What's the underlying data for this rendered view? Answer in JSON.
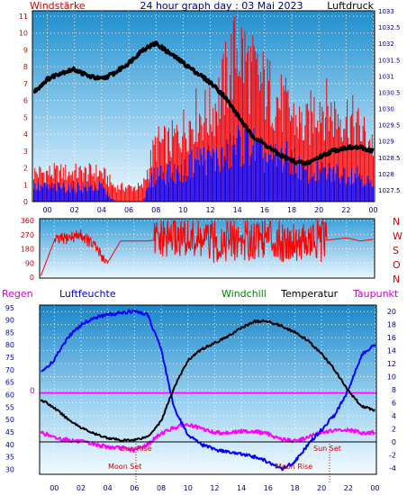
{
  "chart_data": [
    {
      "type": "line",
      "panel": "wind-pressure",
      "title": "24 hour graph day : 03 Mai 2023",
      "left_axis_label": "Windstärke",
      "right_axis_label": "Luftdruck",
      "x_ticks": [
        "00",
        "02",
        "04",
        "06",
        "08",
        "10",
        "12",
        "14",
        "16",
        "18",
        "20",
        "22",
        "00"
      ],
      "left_ticks": [
        "0",
        "1",
        "2",
        "3",
        "4",
        "5",
        "6",
        "7",
        "8",
        "9",
        "10",
        "11"
      ],
      "right_ticks": [
        "1027.5",
        "1028",
        "1028.5",
        "1029",
        "1029.5",
        "1030",
        "1030.5",
        "1031",
        "1031.5",
        "1032",
        "1032.5",
        "1033"
      ],
      "ylim_left": [
        0,
        11
      ],
      "ylim_right": [
        1027.5,
        1033
      ],
      "grid": true,
      "colors": {
        "gust": "#ff0000",
        "wind": "#0000ff",
        "pressure": "#000000",
        "axis_text": "#cc0000",
        "tick_text": "#000080"
      },
      "series": [
        {
          "role": "pressure",
          "x": [
            -1,
            0,
            1,
            2,
            3,
            4,
            5,
            6,
            7,
            8,
            9,
            10,
            11,
            12,
            13,
            14,
            15,
            16,
            17,
            18,
            19,
            20,
            21,
            22,
            23,
            24
          ],
          "values": [
            1030.5,
            1030.9,
            1031.1,
            1031.2,
            1031.0,
            1030.9,
            1031.1,
            1031.4,
            1031.8,
            1032.0,
            1031.7,
            1031.4,
            1031.1,
            1030.8,
            1030.4,
            1029.8,
            1029.2,
            1028.9,
            1028.6,
            1028.4,
            1028.3,
            1028.5,
            1028.7,
            1028.8,
            1028.8,
            1028.7
          ]
        },
        {
          "role": "gust",
          "x": [
            -1,
            0,
            1,
            2,
            3,
            4,
            5,
            6,
            7,
            8,
            9,
            10,
            11,
            12,
            13,
            14,
            15,
            16,
            17,
            18,
            19,
            20,
            21,
            22,
            23,
            24
          ],
          "values": [
            2,
            2,
            2,
            2,
            2,
            2,
            1,
            1,
            1,
            4,
            4,
            5,
            6,
            6,
            8,
            11,
            9,
            8,
            7,
            6,
            5,
            7,
            6,
            6,
            5,
            4
          ]
        },
        {
          "role": "wind",
          "x": [
            -1,
            0,
            1,
            2,
            3,
            4,
            5,
            6,
            7,
            8,
            9,
            10,
            11,
            12,
            13,
            14,
            15,
            16,
            17,
            18,
            19,
            20,
            21,
            22,
            23,
            24
          ],
          "values": [
            1,
            1,
            1,
            1,
            1,
            1,
            0,
            0,
            0,
            2,
            2,
            2,
            3,
            3,
            3,
            4,
            4,
            3,
            3,
            3,
            2,
            2,
            2,
            2,
            2,
            1
          ]
        }
      ]
    },
    {
      "type": "line",
      "panel": "wind-direction",
      "left_ticks": [
        "0",
        "90",
        "180",
        "270",
        "360"
      ],
      "direction_labels": [
        "N",
        "W",
        "S",
        "O",
        "N"
      ],
      "ylim": [
        0,
        360
      ],
      "colors": {
        "direction": "#ff0000",
        "direction_labels": "#cc0000",
        "tick_text": "#000080"
      },
      "series": [
        {
          "role": "direction",
          "x": [
            -1,
            0,
            1,
            2,
            3,
            4,
            5,
            6,
            7,
            8,
            9,
            10,
            11,
            12,
            13,
            14,
            15,
            16,
            17,
            18,
            19,
            20,
            21,
            22,
            23,
            24
          ],
          "values": [
            10,
            230,
            250,
            270,
            200,
            90,
            230,
            230,
            230,
            240,
            260,
            250,
            230,
            220,
            240,
            230,
            250,
            270,
            230,
            240,
            220,
            230,
            240,
            250,
            230,
            240
          ]
        }
      ]
    },
    {
      "type": "line",
      "panel": "temperature-humidity",
      "labels": {
        "regen": "Regen",
        "humidity": "Luftfeuchte",
        "windchill": "Windchill",
        "temperature": "Temperatur",
        "dewpoint": "Taupunkt"
      },
      "left_ticks": [
        "30",
        "35",
        "40",
        "45",
        "50",
        "55",
        "60",
        "65",
        "70",
        "75",
        "80",
        "85",
        "90",
        "95"
      ],
      "right_ticks": [
        "-4",
        "-2",
        "0",
        "2",
        "4",
        "6",
        "8",
        "10",
        "12",
        "14",
        "16",
        "18",
        "20"
      ],
      "regen_marker": "0",
      "ylim_left": [
        28,
        96
      ],
      "ylim_right": [
        -5,
        21
      ],
      "annotations": {
        "sun_rise": "Sun Rise",
        "sun_set": "Sun Set",
        "moon_set": "Moon Set",
        "moon_rise": "Moon Rise"
      },
      "colors": {
        "humidity": "#0000ff",
        "temperature": "#000000",
        "dewpoint": "#ff00ff",
        "windchill": "#008000",
        "regen_line": "#ff00ff",
        "sun": "#cc0000"
      },
      "series": [
        {
          "role": "humidity",
          "x": [
            -1,
            0,
            1,
            2,
            3,
            4,
            5,
            6,
            7,
            8,
            9,
            10,
            11,
            12,
            13,
            14,
            15,
            16,
            17,
            18,
            19,
            20,
            21,
            22,
            23,
            24
          ],
          "values": [
            69,
            74,
            83,
            88,
            91,
            92,
            93,
            93.5,
            92,
            78,
            54,
            44,
            40,
            38,
            37,
            36,
            35,
            33,
            30,
            33,
            40,
            46,
            52,
            62,
            76,
            80
          ]
        },
        {
          "role": "temperature",
          "x": [
            -1,
            0,
            1,
            2,
            3,
            4,
            5,
            6,
            7,
            8,
            9,
            10,
            11,
            12,
            13,
            14,
            15,
            16,
            17,
            18,
            19,
            20,
            21,
            22,
            23,
            24
          ],
          "values": [
            6.5,
            5.2,
            3.5,
            2.2,
            1.2,
            0.6,
            0.2,
            0.3,
            0.8,
            3.2,
            8.5,
            12.5,
            14.2,
            15.2,
            16.2,
            17.5,
            18.5,
            18.5,
            17.8,
            16.8,
            15.5,
            13.5,
            11,
            7.8,
            5.5,
            4.8
          ]
        },
        {
          "role": "dewpoint",
          "x": [
            -1,
            0,
            1,
            2,
            3,
            4,
            5,
            6,
            7,
            8,
            9,
            10,
            11,
            12,
            13,
            14,
            15,
            16,
            17,
            18,
            19,
            20,
            21,
            22,
            23,
            24
          ],
          "values": [
            1.5,
            0.6,
            0.3,
            0,
            -0.4,
            -0.8,
            -1,
            -1.3,
            -0.4,
            1.3,
            2.2,
            2.6,
            2.0,
            1.4,
            1.4,
            1.6,
            1.6,
            1.2,
            0.4,
            0.1,
            0.7,
            1.5,
            1.7,
            1.8,
            1.4,
            1.4
          ]
        },
        {
          "role": "regen",
          "x": [
            -1,
            24
          ],
          "values": [
            7.5,
            7.5
          ]
        }
      ]
    }
  ]
}
